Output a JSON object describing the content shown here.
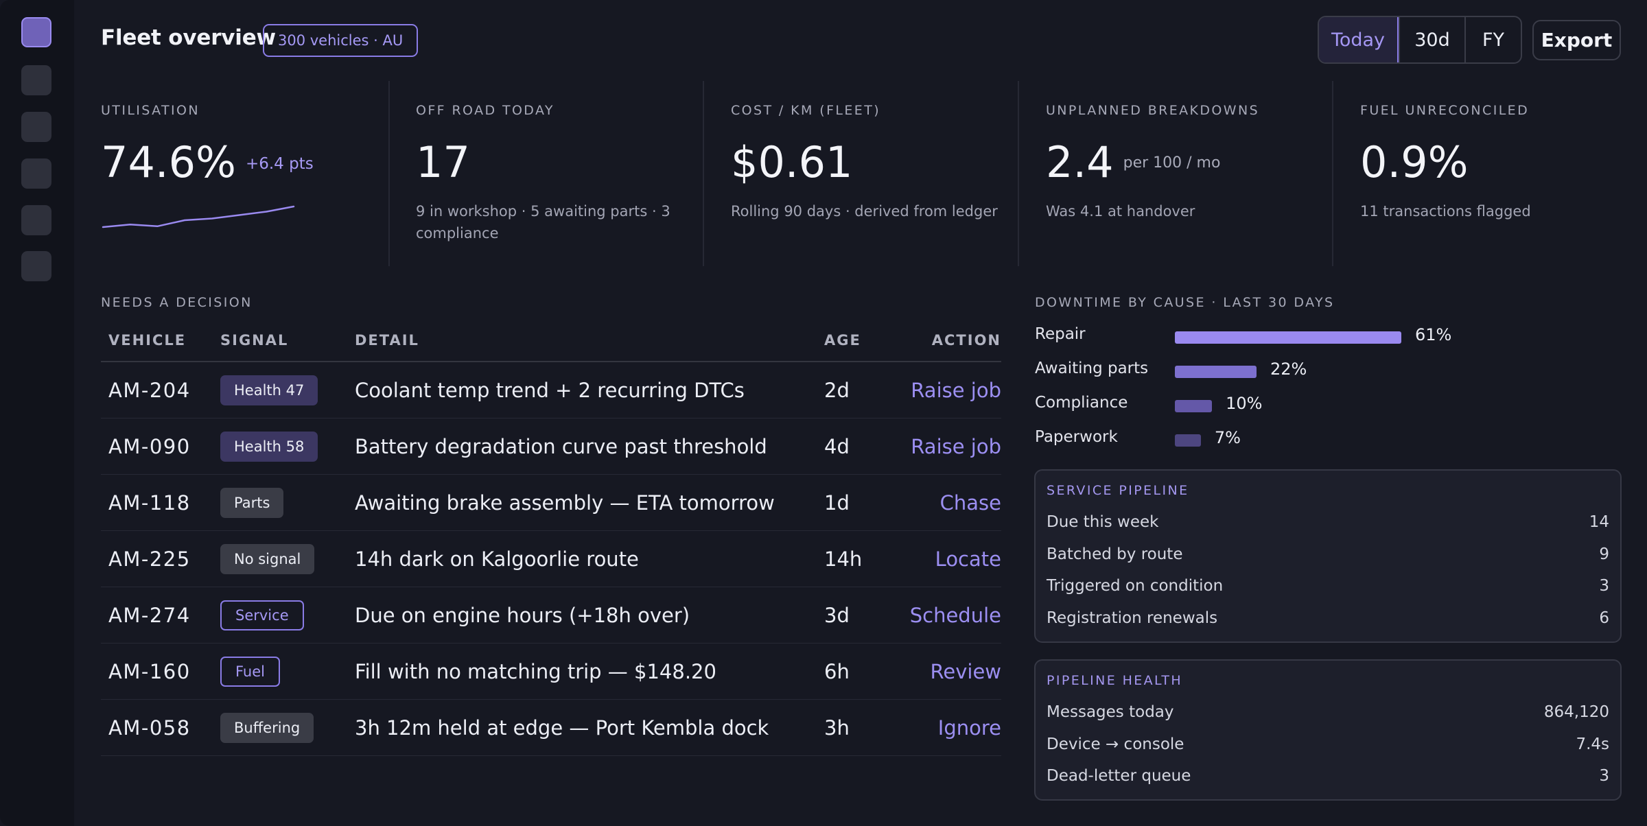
{
  "header": {
    "title": "Fleet overview",
    "scope_badge": "300 vehicles · AU",
    "range": [
      "Today",
      "30d",
      "FY"
    ],
    "export_label": "Export"
  },
  "kpis": [
    {
      "label": "UTILISATION",
      "value": "74.6%",
      "delta": "+6.4 pts",
      "sparkline": [
        0.92,
        0.95,
        0.93,
        1.0,
        1.02,
        1.06,
        1.1,
        1.16
      ]
    },
    {
      "label": "OFF ROAD TODAY",
      "value": "17",
      "sub": "9 in workshop · 5 awaiting parts · 3 compliance"
    },
    {
      "label": "COST / KM (FLEET)",
      "value": "$0.61",
      "sub": "Rolling 90 days · derived from ledger"
    },
    {
      "label": "UNPLANNED BREAKDOWNS",
      "value": "2.4",
      "unit": "per 100 / mo",
      "sub": "Was 4.1 at handover"
    },
    {
      "label": "FUEL UNRECONCILED",
      "value": "0.9%",
      "sub": "11 transactions flagged"
    }
  ],
  "decisions": {
    "section_label": "NEEDS A DECISION",
    "columns": {
      "vehicle": "VEHICLE",
      "signal": "SIGNAL",
      "detail": "DETAIL",
      "age": "AGE",
      "action": "ACTION"
    },
    "rows": [
      {
        "vehicle": "AM-204",
        "signal": "Health 47",
        "signal_style": "health",
        "detail": "Coolant temp trend + 2 recurring DTCs",
        "age": "2d",
        "action": "Raise job"
      },
      {
        "vehicle": "AM-090",
        "signal": "Health 58",
        "signal_style": "health",
        "detail": "Battery degradation curve past threshold",
        "age": "4d",
        "action": "Raise job"
      },
      {
        "vehicle": "AM-118",
        "signal": "Parts",
        "signal_style": "neutral",
        "detail": "Awaiting brake assembly — ETA tomorrow",
        "age": "1d",
        "action": "Chase"
      },
      {
        "vehicle": "AM-225",
        "signal": "No signal",
        "signal_style": "neutral",
        "detail": "14h dark on Kalgoorlie route",
        "age": "14h",
        "action": "Locate"
      },
      {
        "vehicle": "AM-274",
        "signal": "Service",
        "signal_style": "outline",
        "detail": "Due on engine hours (+18h over)",
        "age": "3d",
        "action": "Schedule"
      },
      {
        "vehicle": "AM-160",
        "signal": "Fuel",
        "signal_style": "outline",
        "detail": "Fill with no matching trip — $148.20",
        "age": "6h",
        "action": "Review"
      },
      {
        "vehicle": "AM-058",
        "signal": "Buffering",
        "signal_style": "neutral",
        "detail": "3h 12m held at edge — Port Kembla dock",
        "age": "3h",
        "action": "Ignore"
      }
    ]
  },
  "downtime": {
    "section_label": "DOWNTIME BY CAUSE · LAST 30 DAYS",
    "items": [
      {
        "label": "Repair",
        "pct": 61,
        "pct_label": "61%",
        "color": "#9a8af0"
      },
      {
        "label": "Awaiting parts",
        "pct": 22,
        "pct_label": "22%",
        "color": "#7d70cf"
      },
      {
        "label": "Compliance",
        "pct": 10,
        "pct_label": "10%",
        "color": "#6458a8"
      },
      {
        "label": "Paperwork",
        "pct": 7,
        "pct_label": "7%",
        "color": "#4d4680"
      }
    ]
  },
  "service_pipeline": {
    "title": "SERVICE PIPELINE",
    "rows": [
      {
        "label": "Due this week",
        "value": "14"
      },
      {
        "label": "Batched by route",
        "value": "9"
      },
      {
        "label": "Triggered on condition",
        "value": "3"
      },
      {
        "label": "Registration renewals",
        "value": "6"
      }
    ]
  },
  "pipeline_health": {
    "title": "PIPELINE HEALTH",
    "rows": [
      {
        "label": "Messages today",
        "value": "864,120"
      },
      {
        "label": "Device → console",
        "value": "7.4s"
      },
      {
        "label": "Dead-letter queue",
        "value": "3"
      }
    ]
  },
  "colors": {
    "accent": "#9a8af0",
    "background": "#161822",
    "rail": "#11131b"
  },
  "sidebar": {
    "icons": [
      "nav-item-1",
      "nav-item-2",
      "nav-item-3",
      "nav-item-4",
      "nav-item-5",
      "nav-item-6"
    ]
  }
}
